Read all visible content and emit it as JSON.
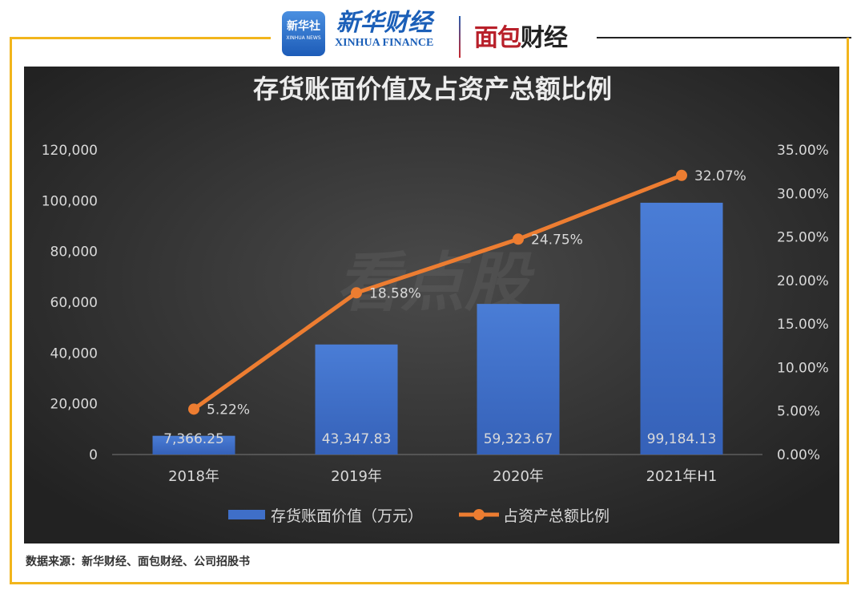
{
  "header": {
    "xinhua_logo": "新华社",
    "xinhua_logo_sub": "XINHUA NEWS",
    "xinhua_finance_cn": "新华财经",
    "xinhua_finance_en": "XINHUA FINANCE",
    "mianbao_logo_a": "面包",
    "mianbao_logo_b": "财经"
  },
  "watermark": "看点股",
  "source": "数据来源：新华财经、面包财经、公司招股书",
  "colors": {
    "panel": "#2f2f2f",
    "bar": "#3f6fc8",
    "line": "#ed7d31",
    "frame": "#f2b51c",
    "text": "#d9d9d9"
  },
  "chart_data": {
    "type": "bar+line",
    "title": "存货账面价值及占资产总额比例",
    "categories": [
      "2018年",
      "2019年",
      "2020年",
      "2021年H1"
    ],
    "series": [
      {
        "name": "存货账面价值（万元）",
        "type": "bar",
        "axis": "left",
        "values": [
          7366.25,
          43347.83,
          59323.67,
          99184.13
        ],
        "labels": [
          "7,366.25",
          "43,347.83",
          "59,323.67",
          "99,184.13"
        ]
      },
      {
        "name": "占资产总额比例",
        "type": "line",
        "axis": "right",
        "values": [
          5.22,
          18.58,
          24.75,
          32.07
        ],
        "labels": [
          "5.22%",
          "18.58%",
          "24.75%",
          "32.07%"
        ]
      }
    ],
    "left_axis": {
      "ylim": [
        0,
        120000
      ],
      "ticks": [
        "0",
        "20,000",
        "40,000",
        "60,000",
        "80,000",
        "100,000",
        "120,000"
      ]
    },
    "right_axis": {
      "ylim": [
        0,
        35
      ],
      "ticks": [
        "0.00%",
        "5.00%",
        "10.00%",
        "15.00%",
        "20.00%",
        "25.00%",
        "30.00%",
        "35.00%"
      ]
    },
    "grid": false,
    "legend": "bottom"
  }
}
